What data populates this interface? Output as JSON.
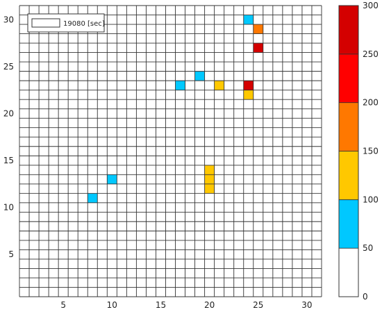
{
  "chart_data": {
    "type": "heatmap",
    "grid": {
      "nx": 31,
      "ny": 31
    },
    "x_range": [
      0.5,
      31.5
    ],
    "y_range": [
      0.5,
      31.5
    ],
    "x_ticks": [
      5,
      10,
      15,
      20,
      25,
      30
    ],
    "y_ticks": [
      5,
      10,
      15,
      20,
      25,
      30
    ],
    "x_tick_labels": [
      "5",
      "10",
      "15",
      "20",
      "25",
      "30"
    ],
    "y_tick_labels": [
      "5",
      "10",
      "15",
      "20",
      "25",
      "30"
    ],
    "cells": [
      {
        "x": 24,
        "y": 30,
        "value": 75
      },
      {
        "x": 25,
        "y": 29,
        "value": 175
      },
      {
        "x": 25,
        "y": 27,
        "value": 275
      },
      {
        "x": 17,
        "y": 23,
        "value": 75
      },
      {
        "x": 19,
        "y": 24,
        "value": 75
      },
      {
        "x": 21,
        "y": 23,
        "value": 125
      },
      {
        "x": 24,
        "y": 23,
        "value": 275
      },
      {
        "x": 24,
        "y": 22,
        "value": 125
      },
      {
        "x": 20,
        "y": 14,
        "value": 125
      },
      {
        "x": 20,
        "y": 13,
        "value": 125
      },
      {
        "x": 20,
        "y": 12,
        "value": 125
      },
      {
        "x": 10,
        "y": 13,
        "value": 75
      },
      {
        "x": 8,
        "y": 11,
        "value": 75
      }
    ],
    "legend_label": "19080 [sec]",
    "colorbar": {
      "bounds": [
        0,
        50,
        100,
        150,
        200,
        250,
        300
      ],
      "colors": [
        "#ffffff",
        "#00c8ff",
        "#ffc800",
        "#ff7800",
        "#ff0000",
        "#d40000"
      ],
      "tick_labels": [
        "0",
        "50",
        "100",
        "150",
        "200",
        "250",
        "300"
      ]
    }
  }
}
